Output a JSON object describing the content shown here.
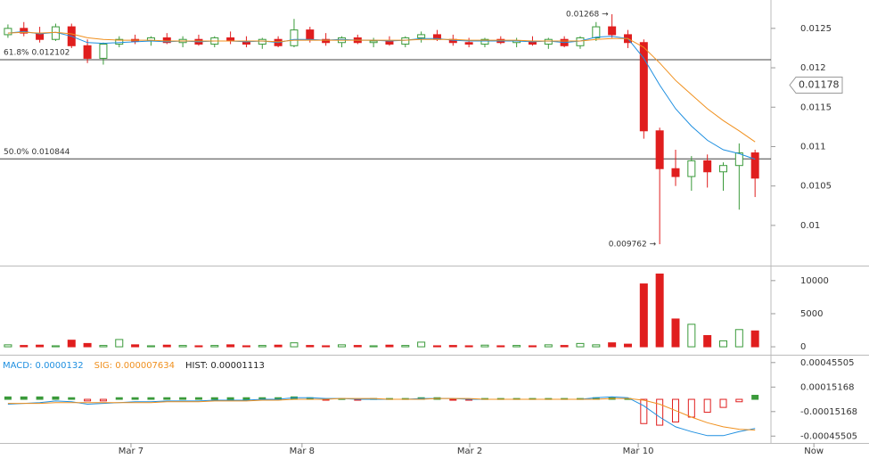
{
  "chart_data": [
    {
      "type": "candlestick",
      "xlim": [
        -0.5,
        48
      ],
      "ylim": [
        0.00949,
        0.01286
      ],
      "yticks": [
        0.0125,
        0.012,
        0.0115,
        0.011,
        0.0105,
        0.01
      ],
      "up_color": "#3a9a3a",
      "down_color": "#e01e1e",
      "open": [
        0.01242,
        0.0125,
        0.01244,
        0.01236,
        0.01252,
        0.01228,
        0.01212,
        0.0123,
        0.01236,
        0.01234,
        0.01238,
        0.01232,
        0.01236,
        0.0123,
        0.01238,
        0.01234,
        0.0123,
        0.01236,
        0.01228,
        0.01248,
        0.01236,
        0.01232,
        0.01238,
        0.01232,
        0.01234,
        0.0123,
        0.01238,
        0.01242,
        0.01236,
        0.01232,
        0.0123,
        0.01236,
        0.01232,
        0.01234,
        0.0123,
        0.01236,
        0.01228,
        0.01238,
        0.01252,
        0.01242,
        0.01232,
        0.0112,
        0.01072,
        0.01062,
        0.01082,
        0.01068,
        0.01076,
        0.01092
      ],
      "high": [
        0.01255,
        0.01258,
        0.01252,
        0.01256,
        0.01256,
        0.01236,
        0.01232,
        0.0124,
        0.01242,
        0.0124,
        0.01244,
        0.0124,
        0.01242,
        0.0124,
        0.01246,
        0.0124,
        0.01238,
        0.0124,
        0.01262,
        0.01252,
        0.01244,
        0.0124,
        0.01242,
        0.01238,
        0.0124,
        0.0124,
        0.01246,
        0.01248,
        0.01242,
        0.01238,
        0.01238,
        0.0124,
        0.01238,
        0.0124,
        0.01238,
        0.0124,
        0.0124,
        0.01258,
        0.01268,
        0.01248,
        0.01236,
        0.01124,
        0.01096,
        0.01088,
        0.0109,
        0.0108,
        0.01104,
        0.01096
      ],
      "low": [
        0.01238,
        0.0124,
        0.01232,
        0.01234,
        0.01225,
        0.01206,
        0.01204,
        0.01226,
        0.0123,
        0.01228,
        0.0123,
        0.01226,
        0.01228,
        0.01226,
        0.0123,
        0.01226,
        0.01224,
        0.01226,
        0.01226,
        0.01232,
        0.01228,
        0.01226,
        0.0123,
        0.01226,
        0.01228,
        0.01226,
        0.01232,
        0.01234,
        0.01228,
        0.01226,
        0.01226,
        0.0123,
        0.01226,
        0.01228,
        0.01224,
        0.01226,
        0.01224,
        0.01234,
        0.01238,
        0.01225,
        0.0111,
        0.009762,
        0.0105,
        0.01044,
        0.01048,
        0.01044,
        0.0102,
        0.01036
      ],
      "close": [
        0.0125,
        0.01244,
        0.01236,
        0.01252,
        0.01228,
        0.01212,
        0.0123,
        0.01236,
        0.01234,
        0.01238,
        0.01232,
        0.01236,
        0.0123,
        0.01238,
        0.01234,
        0.0123,
        0.01236,
        0.01228,
        0.01248,
        0.01236,
        0.01232,
        0.01238,
        0.01232,
        0.01234,
        0.0123,
        0.01238,
        0.01242,
        0.01236,
        0.01232,
        0.0123,
        0.01236,
        0.01232,
        0.01234,
        0.0123,
        0.01236,
        0.01228,
        0.01238,
        0.01252,
        0.01242,
        0.01232,
        0.0112,
        0.01072,
        0.01062,
        0.01082,
        0.01068,
        0.01076,
        0.01092,
        0.0106
      ],
      "series": [
        {
          "color": "#1e8fe0",
          "values": [
            0.01244,
            0.01246,
            0.01243,
            0.01245,
            0.0124,
            0.01232,
            0.01231,
            0.01232,
            0.01233,
            0.01234,
            0.01233,
            0.01234,
            0.01233,
            0.01234,
            0.01234,
            0.01233,
            0.01234,
            0.01232,
            0.01236,
            0.01236,
            0.01235,
            0.01236,
            0.01235,
            0.01235,
            0.01234,
            0.01235,
            0.01237,
            0.01237,
            0.01235,
            0.01234,
            0.01234,
            0.01234,
            0.01234,
            0.01233,
            0.01234,
            0.01232,
            0.01234,
            0.01239,
            0.0124,
            0.01237,
            0.01212,
            0.01178,
            0.01148,
            0.01126,
            0.01108,
            0.01096,
            0.01091,
            0.01084
          ]
        },
        {
          "color": "#f0901e",
          "values": [
            0.01244,
            0.01245,
            0.01244,
            0.01245,
            0.01243,
            0.01238,
            0.01236,
            0.01235,
            0.01235,
            0.01235,
            0.01234,
            0.01234,
            0.01234,
            0.01234,
            0.01234,
            0.01234,
            0.01234,
            0.01233,
            0.01235,
            0.01235,
            0.01235,
            0.01235,
            0.01235,
            0.01235,
            0.01235,
            0.01235,
            0.01236,
            0.01236,
            0.01236,
            0.01235,
            0.01235,
            0.01235,
            0.01235,
            0.01234,
            0.01234,
            0.01234,
            0.01234,
            0.01236,
            0.01237,
            0.01237,
            0.01226,
            0.01206,
            0.01184,
            0.01166,
            0.01148,
            0.01133,
            0.0112,
            0.01106
          ]
        }
      ],
      "levels": [
        {
          "label": "61.8% 0.012102",
          "value": 0.012102
        },
        {
          "label": "50.0% 0.010844",
          "value": 0.010844
        }
      ],
      "annotations": [
        {
          "label": "0.01268 →",
          "value": 0.01268
        },
        {
          "label": "0.009762 →",
          "value": 0.009762
        }
      ],
      "current_price": 0.01178
    },
    {
      "type": "bar",
      "xlim": [
        -0.5,
        48
      ],
      "ylim": [
        -1200,
        12000
      ],
      "yticks": [
        10000,
        5000,
        0
      ],
      "values": [
        300,
        200,
        250,
        150,
        1000,
        500,
        200,
        1100,
        300,
        150,
        250,
        200,
        150,
        200,
        300,
        150,
        200,
        250,
        600,
        200,
        150,
        300,
        200,
        150,
        250,
        200,
        700,
        150,
        200,
        150,
        250,
        150,
        200,
        150,
        300,
        200,
        500,
        300,
        600,
        400,
        9500,
        11000,
        4200,
        3400,
        1700,
        900,
        2600,
        2400
      ]
    },
    {
      "type": "line",
      "xlim": [
        -0.5,
        48
      ],
      "ylim": [
        -0.00054,
        0.00053
      ],
      "yticks": [
        0.00045505,
        0.00015168,
        -0.00015168,
        -0.00045505
      ],
      "series": [
        {
          "name": "MACD: 0.0000132",
          "color": "#1e8fe0",
          "values": [
            -6e-05,
            -5e-05,
            -4e-05,
            -2e-05,
            -3e-05,
            -6e-05,
            -5e-05,
            -4e-05,
            -3e-05,
            -3e-05,
            -2e-05,
            -2e-05,
            -2e-05,
            -1e-05,
            -1e-05,
            -1e-05,
            0,
            0,
            2e-05,
            2e-05,
            1e-05,
            1e-05,
            0,
            0,
            0,
            0,
            1e-05,
            1e-05,
            1e-05,
            0,
            0,
            0,
            0,
            0,
            0,
            0,
            0,
            2e-05,
            3e-05,
            2e-05,
            -8e-05,
            -0.00022,
            -0.00034,
            -0.0004,
            -0.00045,
            -0.00045,
            -0.0004,
            -0.00036
          ]
        },
        {
          "name": "SIG: 0.000007634",
          "color": "#f0901e",
          "values": [
            -5e-05,
            -5e-05,
            -5e-05,
            -4e-05,
            -4e-05,
            -4e-05,
            -4e-05,
            -4e-05,
            -4e-05,
            -4e-05,
            -3e-05,
            -3e-05,
            -3e-05,
            -2e-05,
            -2e-05,
            -2e-05,
            -1e-05,
            -1e-05,
            0,
            0,
            0,
            1e-05,
            1e-05,
            1e-05,
            0,
            0,
            0,
            1e-05,
            1e-05,
            1e-05,
            0,
            0,
            0,
            0,
            0,
            0,
            0,
            0,
            1e-05,
            1e-05,
            -1e-05,
            -6e-05,
            -0.00014,
            -0.00022,
            -0.00029,
            -0.00034,
            -0.00037,
            -0.00038
          ]
        }
      ],
      "hist_label": "HIST: 0.00001113",
      "hist": [
        3e-05,
        3e-05,
        3e-05,
        3e-05,
        2e-05,
        -2e-05,
        -2e-05,
        2e-05,
        2e-05,
        2e-05,
        2e-05,
        2e-05,
        2e-05,
        2e-05,
        2e-05,
        2e-05,
        2e-05,
        2e-05,
        3e-05,
        2e-05,
        -1e-05,
        1e-05,
        -1e-05,
        1e-05,
        1e-05,
        1e-05,
        2e-05,
        2e-05,
        -1e-05,
        -1e-05,
        1e-05,
        1e-05,
        1e-05,
        1e-05,
        1e-05,
        1e-05,
        1e-05,
        2e-05,
        2e-05,
        1e-05,
        -0.0003,
        -0.00032,
        -0.00028,
        -0.00022,
        -0.00016,
        -0.0001,
        -3e-05,
        5e-05
      ],
      "xticks": [
        {
          "value": 7.74,
          "label": "Mar 7"
        },
        {
          "value": 18.5,
          "label": "Mar 8"
        },
        {
          "value": 29.05,
          "label": "Mar 2"
        },
        {
          "value": 39.65,
          "label": "Mar 10"
        },
        {
          "value": 50.7,
          "label": "Now"
        }
      ]
    }
  ]
}
